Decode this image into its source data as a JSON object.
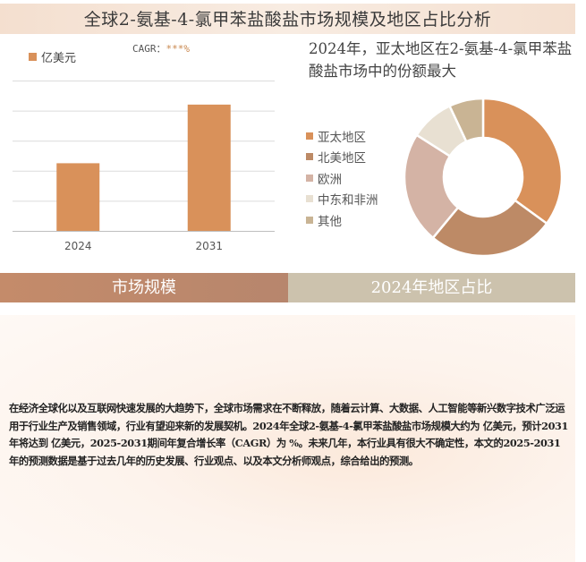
{
  "title": "全球2-氨基-4-氯甲苯盐酸盐市场规模及地区占比分析",
  "legend_label": "亿美元",
  "cagr": {
    "label": "CAGR：",
    "value": "***%"
  },
  "pie_title": "2024年，亚太地区在2-氨基-4-氯甲苯盐酸盐市场中的份额最大",
  "tabs": {
    "left": "市场规模",
    "right": "2024年地区占比"
  },
  "description": "在经济全球化以及互联网快速发展的大趋势下，全球市场需求在不断释放，随着云计算、大数据、人工智能等新兴数字技术广泛运用于行业生产及销售领域，行业有望迎来新的发展契机。2024年全球2-氨基-4-氯甲苯盐酸盐市场规模大约为 亿美元，预计2031年将达到 亿美元，2025-2031期间年复合增长率（CAGR）为 %。未来几年，本行业具有很大不确定性，本文的2025-2031年的预测数据是基于过去几年的历史发展、行业观点、以及本文分析师观点，综合给出的预测。",
  "colors": {
    "bar": "#d9915a",
    "accent": "#c9874d"
  },
  "chart_data": [
    {
      "type": "bar",
      "categories": [
        "2024",
        "2031"
      ],
      "values": [
        0.45,
        0.84
      ],
      "ylim": [
        0,
        1
      ],
      "grid": true,
      "series": [
        {
          "name": "亿美元",
          "values": [
            0.45,
            0.84
          ]
        }
      ]
    },
    {
      "type": "pie",
      "labels": [
        "亚太地区",
        "北美地区",
        "欧洲",
        "中东和非洲",
        "其他"
      ],
      "values": [
        35,
        26,
        23,
        9,
        7
      ],
      "colors": [
        "#d9915a",
        "#bd8a66",
        "#d4b3a5",
        "#e8e0d2",
        "#c9b494"
      ]
    }
  ]
}
